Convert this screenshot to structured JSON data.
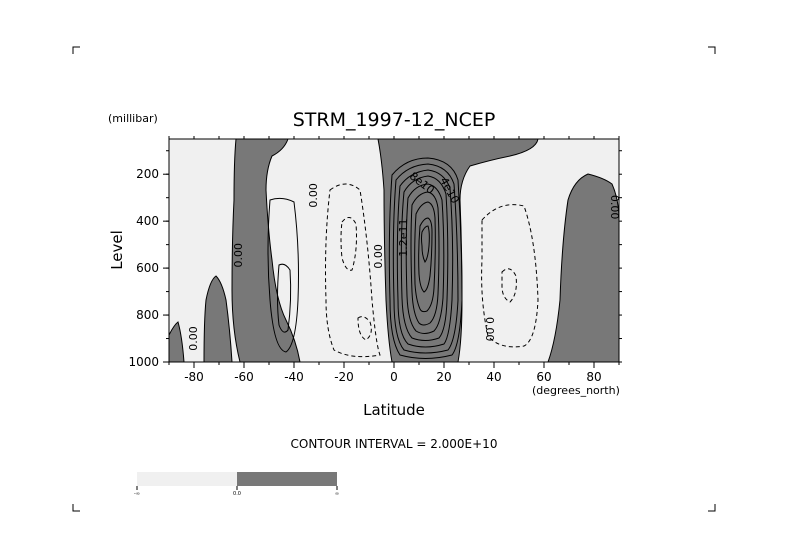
{
  "chart_data": {
    "type": "contour",
    "title": "STRM_1997-12_NCEP",
    "xlabel": "Latitude",
    "ylabel": "Level",
    "x_unit": "(degrees_north)",
    "y_unit": "(millibar)",
    "xlim": [
      -90,
      90
    ],
    "ylim": [
      1000,
      50
    ],
    "y_reversed": true,
    "x_ticks": [
      -80,
      -60,
      -40,
      -20,
      0,
      20,
      40,
      60,
      80
    ],
    "y_ticks": [
      200,
      400,
      600,
      800,
      1000
    ],
    "x_tick_labels": [
      "-80",
      "-60",
      "-40",
      "-20",
      "0",
      "20",
      "40",
      "60",
      "80"
    ],
    "y_tick_labels": [
      "200",
      "400",
      "600",
      "800",
      "1000"
    ],
    "contour_interval_text": "CONTOUR INTERVAL = 2.000E+10",
    "contour_interval": 20000000000.0,
    "shading": {
      "negative_color": "#f0f0f0",
      "positive_color": "#787878"
    },
    "contour_labels": [
      {
        "text": "0.00",
        "lat": -80,
        "level": 900,
        "rotation": -90
      },
      {
        "text": "0.00",
        "lat": -62,
        "level": 545,
        "rotation": -90
      },
      {
        "text": "0.00",
        "lat": -32,
        "level": 290,
        "rotation": -90
      },
      {
        "text": "0.00",
        "lat": -6,
        "level": 550,
        "rotation": -90
      },
      {
        "text": "0.00",
        "lat": 38,
        "level": 860,
        "rotation": 90
      },
      {
        "text": "0.00",
        "lat": 88,
        "level": 340,
        "rotation": 90
      },
      {
        "text": "8e10",
        "lat": 11,
        "level": 240,
        "rotation": 38
      },
      {
        "text": "4e10",
        "lat": 22,
        "level": 270,
        "rotation": 62
      },
      {
        "text": "1.2e11",
        "lat": 4,
        "level": 470,
        "rotation": -90
      }
    ],
    "colorbar": {
      "labels": [
        "-∞",
        "0.0",
        "∞"
      ],
      "colors": [
        "#f0f0f0",
        "#787878"
      ]
    }
  }
}
